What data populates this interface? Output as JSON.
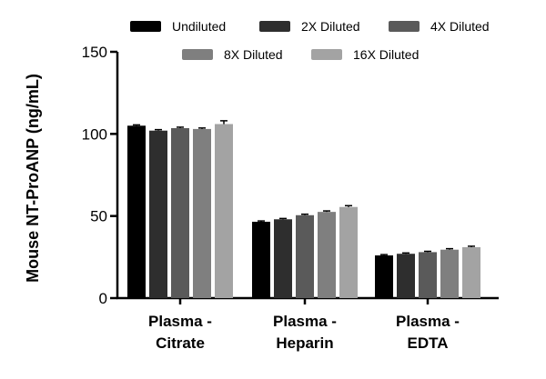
{
  "chart_data": {
    "type": "bar",
    "title": "",
    "xlabel": "",
    "ylabel": "Mouse NT-ProANP (ng/mL)",
    "ylim": [
      0,
      150
    ],
    "yticks": [
      0,
      50,
      100,
      150
    ],
    "grid": false,
    "legend_position": "top",
    "categories": [
      {
        "line1": "Plasma -",
        "line2": "Citrate"
      },
      {
        "line1": "Plasma -",
        "line2": "Heparin"
      },
      {
        "line1": "Plasma -",
        "line2": "EDTA"
      }
    ],
    "series": [
      {
        "name": "Undiluted",
        "color": "#000000",
        "values": [
          105,
          46.5,
          26
        ],
        "errors": [
          0.5,
          0.5,
          0.5
        ]
      },
      {
        "name": "2X Diluted",
        "color": "#2e2e2e",
        "values": [
          102,
          48,
          27
        ],
        "errors": [
          0.6,
          0.5,
          0.5
        ]
      },
      {
        "name": "4X Diluted",
        "color": "#5a5a5a",
        "values": [
          103.5,
          50.5,
          28
        ],
        "errors": [
          0.6,
          0.6,
          0.5
        ]
      },
      {
        "name": "8X Diluted",
        "color": "#7f7f7f",
        "values": [
          103,
          52.5,
          29.5
        ],
        "errors": [
          0.6,
          0.6,
          0.6
        ]
      },
      {
        "name": "16X Diluted",
        "color": "#a3a3a3",
        "values": [
          106,
          55.5,
          31
        ],
        "errors": [
          2.0,
          0.8,
          0.6
        ]
      }
    ]
  }
}
